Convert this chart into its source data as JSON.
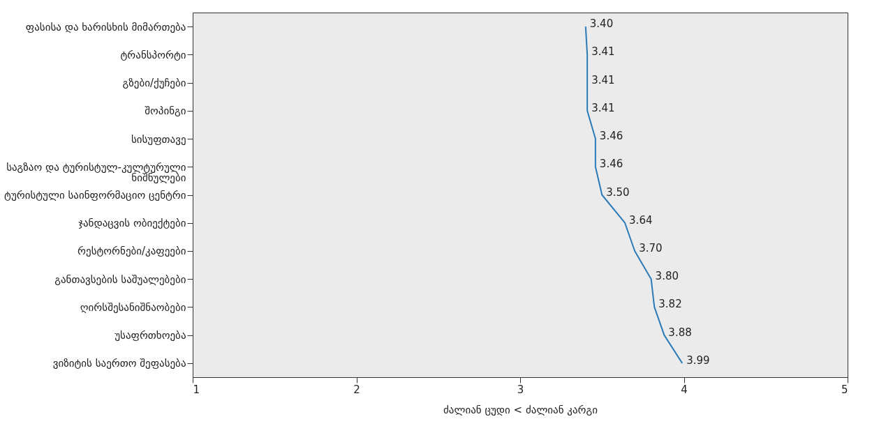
{
  "chart_data": {
    "type": "line",
    "orientation": "horizontal",
    "xlabel": "ძალიან ცუდი < ძალიან კარგი",
    "categories": [
      "ფასისა და ხარისხის მიმართება",
      "ტრანსპორტი",
      "გზები/ქუჩები",
      "შოპინგი",
      "სისუფთავე",
      "საგზაო და ტურისტულ-კულტურული\nნიშნულები",
      "ტურისტული საინფორმაციო ცენტრი",
      "ჯანდაცვის ობიექტები",
      "რესტორნები/კაფეები",
      "განთავსების საშუალებები",
      "ღირსშესანიშნაობები",
      "უსაფრთხოება",
      "ვიზიტის საერთო შეფასება"
    ],
    "series": [
      {
        "color": "#2a7ab8",
        "values": [
          3.4,
          3.41,
          3.41,
          3.41,
          3.46,
          3.46,
          3.5,
          3.64,
          3.7,
          3.8,
          3.82,
          3.88,
          3.99
        ]
      }
    ],
    "xlim": [
      1,
      5
    ],
    "xticks": [
      1,
      2,
      3,
      4,
      5
    ],
    "value_labels": [
      "3.40",
      "3.41",
      "3.41",
      "3.41",
      "3.46",
      "3.46",
      "3.50",
      "3.64",
      "3.70",
      "3.80",
      "3.82",
      "3.88",
      "3.99"
    ],
    "grid": false,
    "marker": "none"
  }
}
